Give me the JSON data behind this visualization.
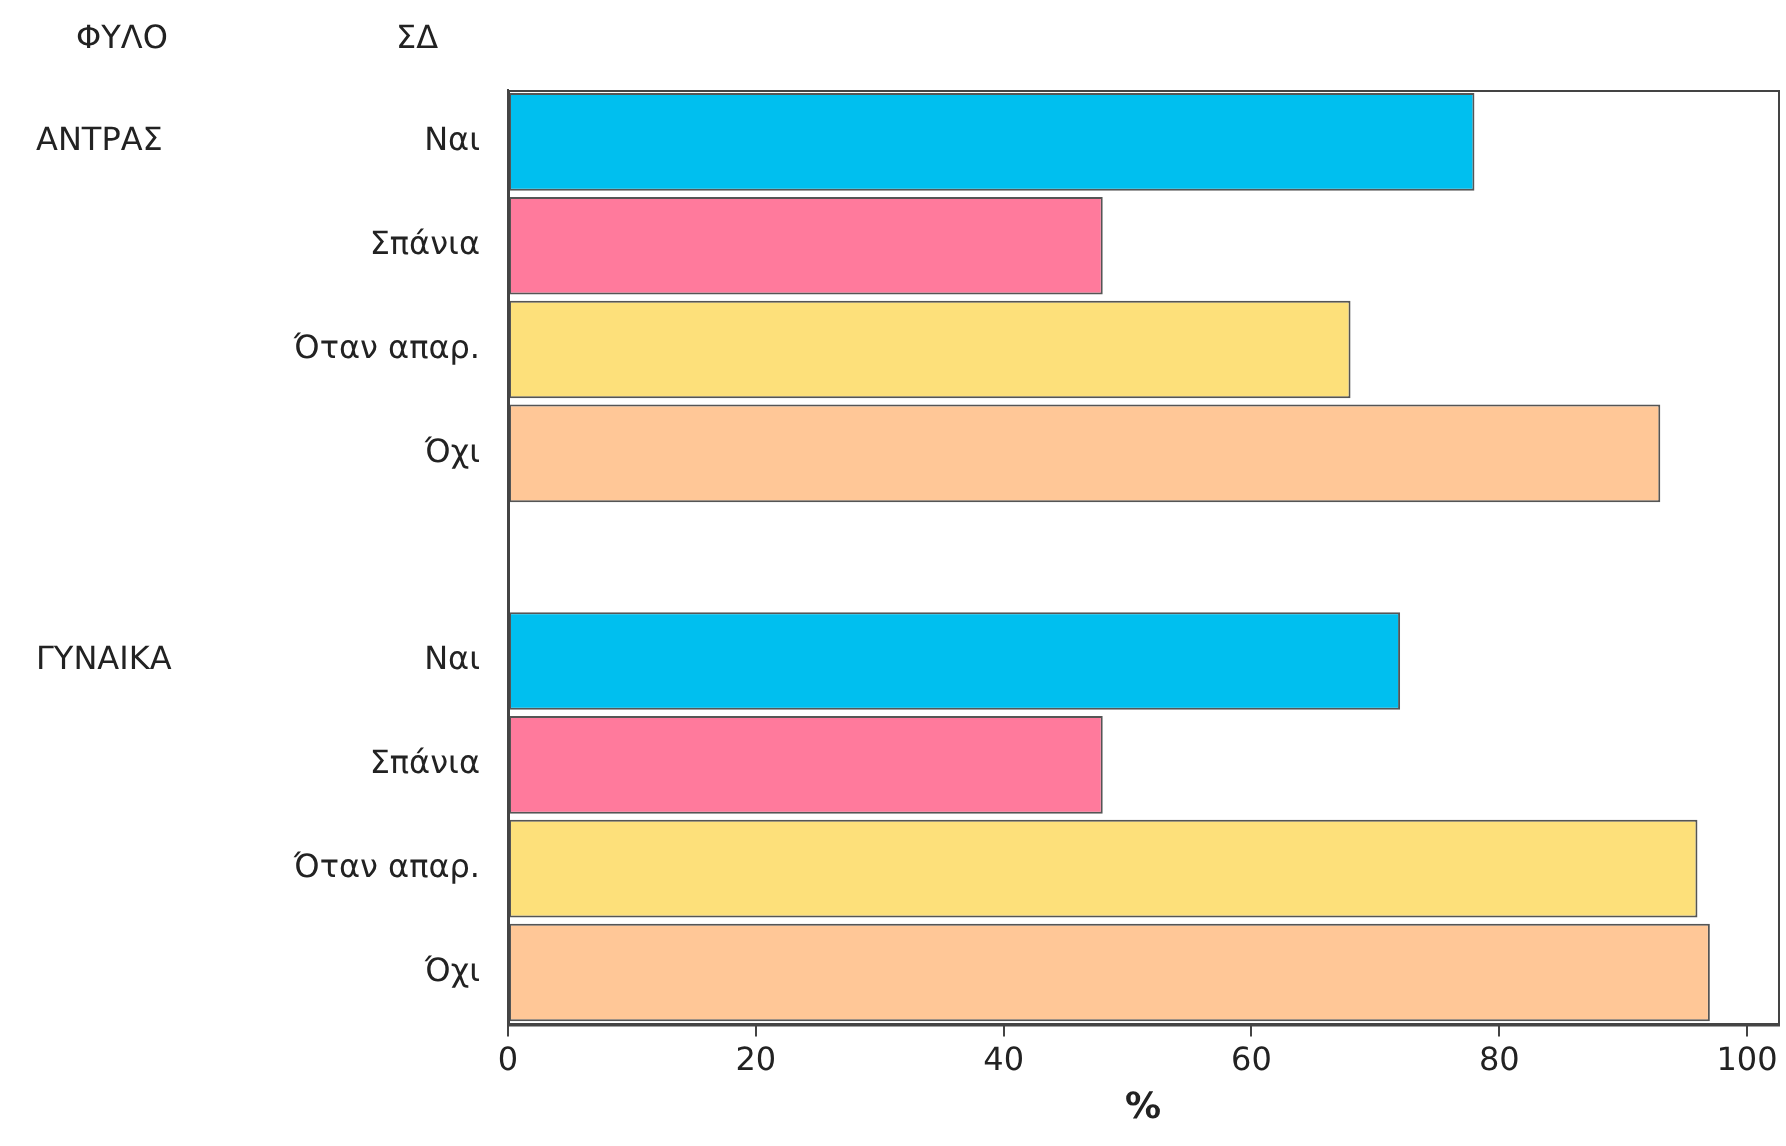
{
  "chart_data": {
    "type": "bar",
    "orientation": "horizontal",
    "xlabel": "%",
    "categories": [
      "Ναι",
      "Σπάνια",
      "Όταν απαρ.",
      "Όχι",
      null,
      "Ναι",
      "Σπάνια",
      "Όταν απαρ.",
      "Όχι"
    ],
    "values": [
      78,
      48,
      68,
      93,
      null,
      72,
      48,
      96,
      97
    ],
    "colors": [
      "#00bfef",
      "#ff7a9c",
      "#fde07a",
      "#ffc797",
      "#ffffff",
      "#00bfef",
      "#ff7a9c",
      "#fde07a",
      "#ffc797"
    ],
    "xlim": [
      0,
      102.5
    ],
    "xticks": [
      0,
      20,
      40,
      60,
      80,
      100
    ],
    "annotations": [
      "ΦΥΛΟ",
      "ΣΔ",
      "ΑΝΤΡΑΣ",
      "ΓΥΝΑΙΚΑ"
    ],
    "grid": false,
    "legend": false
  }
}
